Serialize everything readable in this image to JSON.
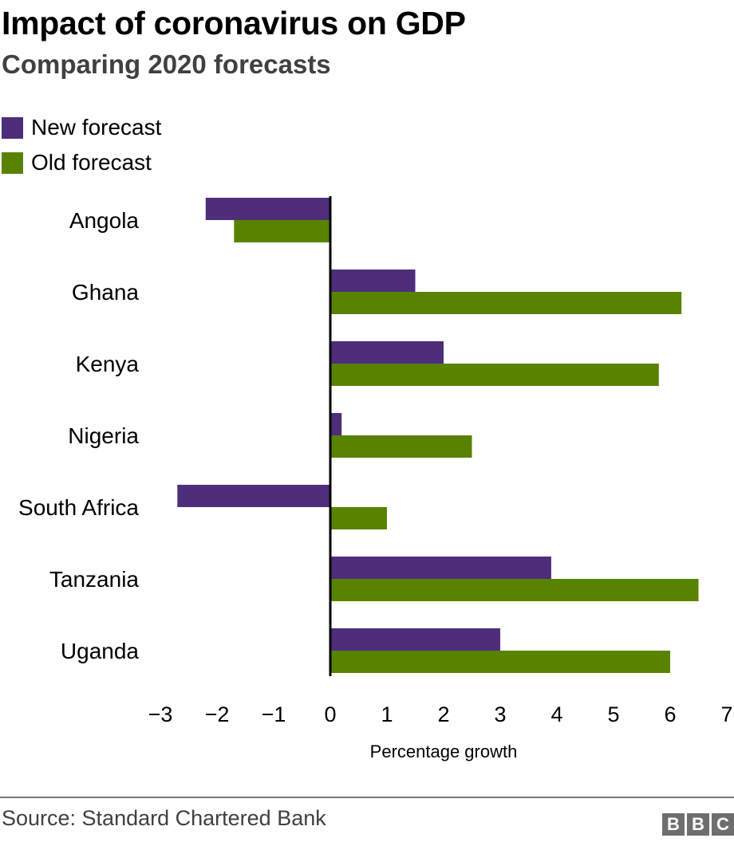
{
  "header": {
    "title": "Impact of coronavirus on GDP",
    "subtitle": "Comparing 2020 forecasts"
  },
  "legend": [
    {
      "label": "New forecast",
      "color": "#4e2d7a"
    },
    {
      "label": "Old forecast",
      "color": "#588300"
    }
  ],
  "footer": {
    "source": "Source: Standard Chartered Bank",
    "logo_letters": [
      "B",
      "B",
      "C"
    ]
  },
  "chart_data": {
    "type": "bar",
    "orientation": "horizontal",
    "title": "Impact of coronavirus on GDP",
    "subtitle": "Comparing 2020 forecasts",
    "xlabel": "Percentage growth",
    "ylabel": "",
    "categories": [
      "Angola",
      "Ghana",
      "Kenya",
      "Nigeria",
      "South Africa",
      "Tanzania",
      "Uganda"
    ],
    "series": [
      {
        "name": "New forecast",
        "color": "#4e2d7a",
        "values": [
          -2.2,
          1.5,
          2.0,
          0.2,
          -2.7,
          3.9,
          3.0
        ]
      },
      {
        "name": "Old forecast",
        "color": "#588300",
        "values": [
          -1.7,
          6.2,
          5.8,
          2.5,
          1.0,
          6.5,
          6.0
        ]
      }
    ],
    "xlim": [
      -3,
      7
    ],
    "xticks": [
      -3,
      -2,
      -1,
      0,
      1,
      2,
      3,
      4,
      5,
      6,
      7
    ],
    "xtick_labels": [
      "−3",
      "−2",
      "−1",
      "0",
      "1",
      "2",
      "3",
      "4",
      "5",
      "6",
      "7"
    ],
    "grid": false,
    "legend_position": "top-left",
    "source": "Source: Standard Chartered Bank"
  }
}
